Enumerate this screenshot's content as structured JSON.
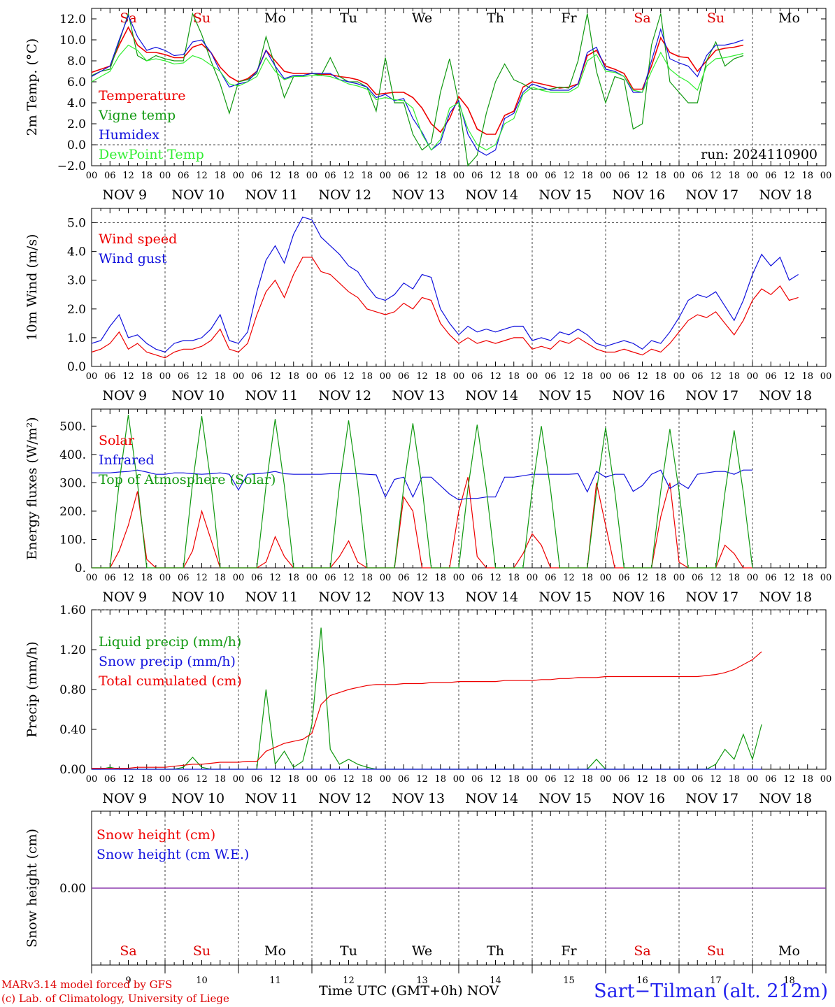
{
  "days": {
    "weekday_labels": [
      "Sa",
      "Su",
      "Mo",
      "Tu",
      "We",
      "Th",
      "Fr",
      "Sa",
      "Su",
      "Mo"
    ],
    "weekday_colors": [
      "#dd0000",
      "#dd0000",
      "#000000",
      "#000000",
      "#000000",
      "#000000",
      "#000000",
      "#dd0000",
      "#dd0000",
      "#000000"
    ],
    "date_labels": [
      "NOV  9",
      "NOV 10",
      "NOV 11",
      "NOV 12",
      "NOV 13",
      "NOV 14",
      "NOV 15",
      "NOV 16",
      "NOV 17",
      "NOV 18"
    ],
    "day_numbers": [
      "9",
      "10",
      "11",
      "12",
      "13",
      "14",
      "15",
      "16",
      "17",
      "18"
    ],
    "hour_ticks": [
      "00",
      "06",
      "12",
      "18"
    ],
    "final_hour": "00"
  },
  "footer": {
    "model_line1": "MARv3.14 model forced by GFS",
    "model_line2": "(c) Lab. of Climatology, University of Liege",
    "time_axis": "Time UTC (GMT+0h)",
    "month": "NOV",
    "station": "Sart−Tilman (alt. 212m)"
  },
  "colors": {
    "red": "#ee0000",
    "green": "#119911",
    "blue": "#1111dd",
    "lightgreen": "#33ee33",
    "purple": "#8833aa"
  },
  "chart_data": [
    {
      "type": "line",
      "ylabel": "2m Temp. (°C)",
      "ylim": [
        -2,
        13
      ],
      "yticks": [
        "12.0",
        "10.0",
        "8.0",
        "6.0",
        "4.0",
        "2.0",
        "0.0",
        "−2.0"
      ],
      "yticks_values": [
        12,
        10,
        8,
        6,
        4,
        2,
        0,
        -2
      ],
      "annotation": "run: 2024110900",
      "x_hours_step": 3,
      "series": [
        {
          "name": "Temperature",
          "color": "#ee0000",
          "values": [
            6.9,
            7.2,
            7.5,
            9.5,
            11.2,
            9.5,
            8.8,
            8.8,
            8.6,
            8.3,
            8.3,
            9.3,
            9.6,
            8.8,
            7.4,
            6.5,
            6.0,
            6.3,
            7.0,
            9.0,
            8.0,
            7.0,
            6.8,
            6.8,
            6.8,
            6.7,
            6.7,
            6.5,
            6.4,
            6.2,
            5.8,
            4.8,
            4.9,
            5.0,
            5.0,
            4.5,
            3.5,
            2.0,
            1.2,
            2.5,
            4.6,
            3.5,
            1.5,
            1.0,
            1.0,
            2.8,
            3.2,
            5.5,
            6.0,
            5.8,
            5.6,
            5.4,
            5.5,
            5.8,
            8.5,
            9.0,
            7.5,
            7.2,
            6.8,
            5.3,
            5.3,
            7.5,
            10.2,
            8.8,
            8.4,
            8.3,
            7.0,
            8.0,
            9.0,
            9.2,
            9.3,
            9.5
          ]
        },
        {
          "name": "Vigne temp",
          "color": "#119911",
          "values": [
            6.6,
            7.0,
            7.2,
            9.8,
            12.5,
            8.5,
            8.0,
            8.5,
            8.2,
            8.0,
            8.0,
            12.5,
            10.5,
            8.0,
            5.8,
            3.0,
            6.0,
            6.2,
            6.8,
            10.3,
            7.5,
            4.5,
            6.5,
            6.6,
            6.8,
            6.6,
            8.3,
            6.5,
            6.0,
            6.0,
            5.5,
            3.2,
            8.3,
            4.0,
            4.0,
            1.0,
            -0.5,
            0.2,
            5.0,
            8.2,
            4.0,
            -2.0,
            -1.0,
            3.0,
            6.0,
            7.7,
            6.2,
            5.8,
            5.3,
            5.3,
            5.3,
            5.5,
            5.4,
            8.0,
            12.5,
            7.0,
            4.0,
            6.5,
            6.2,
            1.5,
            2.0,
            9.5,
            12.5,
            6.0,
            5.0,
            4.0,
            4.0,
            8.0,
            9.8,
            7.5,
            8.2,
            8.5
          ]
        },
        {
          "name": "Humidex",
          "color": "#1111dd",
          "values": [
            6.5,
            7.0,
            7.5,
            10.0,
            12.3,
            10.3,
            9.0,
            9.3,
            9.0,
            8.5,
            8.6,
            9.8,
            10.0,
            8.8,
            7.0,
            5.5,
            5.8,
            6.0,
            7.0,
            9.0,
            7.5,
            6.3,
            6.6,
            6.6,
            6.8,
            6.8,
            6.8,
            6.2,
            6.0,
            5.8,
            5.5,
            4.5,
            4.8,
            4.2,
            4.4,
            2.5,
            1.2,
            -0.5,
            0.2,
            3.0,
            4.2,
            1.0,
            -0.5,
            -1.0,
            -0.5,
            2.5,
            3.0,
            5.0,
            5.8,
            5.5,
            5.2,
            5.2,
            5.2,
            5.8,
            8.8,
            9.3,
            7.2,
            7.0,
            6.5,
            5.0,
            5.0,
            8.0,
            11.0,
            8.2,
            7.8,
            7.5,
            6.5,
            8.5,
            9.5,
            9.5,
            9.7,
            10.0
          ]
        },
        {
          "name": "DewPoint Temp",
          "color": "#33ee33",
          "values": [
            6.0,
            6.5,
            7.0,
            8.5,
            9.5,
            9.0,
            8.0,
            8.2,
            8.0,
            7.7,
            7.8,
            8.5,
            8.2,
            7.6,
            7.0,
            5.8,
            5.6,
            6.0,
            6.5,
            8.3,
            7.0,
            6.2,
            6.5,
            6.5,
            6.6,
            6.6,
            6.5,
            6.2,
            5.8,
            5.6,
            5.3,
            4.3,
            4.5,
            4.3,
            4.2,
            3.5,
            1.0,
            -0.5,
            0.5,
            3.5,
            4.0,
            1.5,
            0.0,
            -0.5,
            0.0,
            2.0,
            2.5,
            4.8,
            5.5,
            5.2,
            5.0,
            5.0,
            5.0,
            5.5,
            8.0,
            8.6,
            7.0,
            6.9,
            6.5,
            5.2,
            5.0,
            7.0,
            8.8,
            7.2,
            6.5,
            6.0,
            5.2,
            7.5,
            8.2,
            8.3,
            8.5,
            8.7
          ]
        }
      ]
    },
    {
      "type": "line",
      "ylabel": "10m Wind (m/s)",
      "ylim": [
        0,
        5.5
      ],
      "yticks": [
        "5.0",
        "4.0",
        "3.0",
        "2.0",
        "1.0",
        "0.0"
      ],
      "yticks_values": [
        5,
        4,
        3,
        2,
        1,
        0
      ],
      "x_hours_step": 3,
      "series": [
        {
          "name": "Wind speed",
          "color": "#ee0000",
          "values": [
            0.5,
            0.6,
            0.8,
            1.2,
            0.6,
            0.8,
            0.5,
            0.4,
            0.3,
            0.5,
            0.6,
            0.6,
            0.7,
            0.9,
            1.3,
            0.6,
            0.5,
            0.8,
            1.8,
            2.6,
            3.0,
            2.4,
            3.2,
            3.8,
            3.8,
            3.3,
            3.2,
            2.9,
            2.6,
            2.4,
            2.0,
            1.9,
            1.8,
            1.9,
            2.2,
            2.0,
            2.4,
            2.3,
            1.5,
            1.1,
            0.8,
            1.0,
            0.8,
            0.9,
            0.8,
            0.9,
            1.0,
            1.0,
            0.6,
            0.7,
            0.6,
            0.9,
            0.8,
            1.0,
            0.8,
            0.6,
            0.5,
            0.5,
            0.6,
            0.5,
            0.4,
            0.6,
            0.5,
            0.8,
            1.2,
            1.6,
            1.8,
            1.7,
            1.9,
            1.5,
            1.1,
            1.6,
            2.3,
            2.7,
            2.5,
            2.8,
            2.3,
            2.4
          ]
        },
        {
          "name": "Wind gust",
          "color": "#1111dd",
          "values": [
            0.8,
            0.9,
            1.4,
            1.8,
            1.0,
            1.1,
            0.8,
            0.6,
            0.5,
            0.8,
            0.9,
            0.9,
            1.0,
            1.3,
            1.8,
            0.9,
            0.8,
            1.2,
            2.6,
            3.7,
            4.2,
            3.6,
            4.6,
            5.2,
            5.1,
            4.5,
            4.2,
            3.9,
            3.5,
            3.3,
            2.8,
            2.4,
            2.3,
            2.5,
            2.9,
            2.7,
            3.2,
            3.1,
            2.0,
            1.5,
            1.1,
            1.4,
            1.2,
            1.3,
            1.2,
            1.3,
            1.4,
            1.4,
            0.9,
            1.0,
            0.9,
            1.2,
            1.1,
            1.3,
            1.1,
            0.8,
            0.7,
            0.8,
            0.9,
            0.8,
            0.6,
            0.9,
            0.8,
            1.2,
            1.7,
            2.3,
            2.5,
            2.4,
            2.6,
            2.1,
            1.6,
            2.3,
            3.2,
            3.9,
            3.5,
            3.8,
            3.0,
            3.2
          ]
        }
      ]
    },
    {
      "type": "line",
      "ylabel": "Energy fluxes (W/m²)",
      "ylim": [
        0,
        560
      ],
      "yticks": [
        "500.",
        "400.",
        "300.",
        "200.",
        "100.",
        "0."
      ],
      "yticks_values": [
        500,
        400,
        300,
        200,
        100,
        0
      ],
      "x_hours_step": 3,
      "series": [
        {
          "name": "Solar",
          "color": "#ee0000",
          "values": [
            0,
            0,
            0,
            60,
            150,
            270,
            30,
            0,
            0,
            0,
            0,
            60,
            200,
            100,
            0,
            0,
            0,
            0,
            0,
            20,
            110,
            40,
            0,
            0,
            0,
            0,
            0,
            40,
            95,
            20,
            0,
            0,
            0,
            0,
            250,
            200,
            0,
            0,
            0,
            0,
            200,
            320,
            40,
            0,
            0,
            0,
            0,
            50,
            120,
            80,
            0,
            0,
            0,
            0,
            0,
            300,
            150,
            0,
            0,
            0,
            0,
            0,
            180,
            300,
            20,
            0,
            0,
            0,
            0,
            80,
            50,
            0,
            0
          ]
        },
        {
          "name": "Infrared",
          "color": "#1111dd",
          "values": [
            335,
            335,
            335,
            338,
            340,
            345,
            338,
            330,
            330,
            335,
            335,
            332,
            330,
            332,
            335,
            330,
            275,
            330,
            332,
            335,
            340,
            332,
            330,
            330,
            330,
            330,
            332,
            332,
            332,
            332,
            330,
            328,
            250,
            312,
            320,
            250,
            320,
            320,
            290,
            260,
            240,
            245,
            245,
            250,
            250,
            320,
            320,
            325,
            330,
            330,
            330,
            330,
            330,
            332,
            268,
            340,
            320,
            330,
            330,
            270,
            290,
            330,
            345,
            280,
            300,
            280,
            330,
            335,
            340,
            340,
            330,
            345,
            345
          ]
        },
        {
          "name": "Top of Atmosphere (Solar)",
          "color": "#119911",
          "values": [
            0,
            0,
            0,
            300,
            540,
            300,
            0,
            0,
            0,
            0,
            0,
            300,
            535,
            300,
            0,
            0,
            0,
            0,
            0,
            290,
            525,
            290,
            0,
            0,
            0,
            0,
            0,
            290,
            520,
            290,
            0,
            0,
            0,
            0,
            285,
            510,
            285,
            0,
            0,
            0,
            0,
            280,
            505,
            280,
            0,
            0,
            0,
            0,
            275,
            500,
            275,
            0,
            0,
            0,
            0,
            270,
            495,
            270,
            0,
            0,
            0,
            0,
            270,
            490,
            270,
            0,
            0,
            0,
            0,
            265,
            485,
            265,
            0
          ]
        }
      ]
    },
    {
      "type": "line",
      "ylabel": "Precip (mm/h)",
      "ylim": [
        0,
        1.6
      ],
      "yticks": [
        "1.60",
        "1.20",
        "0.80",
        "0.40",
        "0.00"
      ],
      "yticks_values": [
        1.6,
        1.2,
        0.8,
        0.4,
        0
      ],
      "x_hours_step": 3,
      "series": [
        {
          "name": "Liquid precip (mm/h)",
          "color": "#119911",
          "values": [
            0,
            0,
            0.02,
            0,
            0,
            0,
            0,
            0,
            0,
            0,
            0.02,
            0.12,
            0.02,
            0,
            0,
            0,
            0,
            0,
            0,
            0.8,
            0.05,
            0.18,
            0.02,
            0.08,
            0.45,
            1.42,
            0.2,
            0.05,
            0.1,
            0.05,
            0.02,
            0,
            0,
            0,
            0,
            0,
            0,
            0,
            0,
            0,
            0,
            0,
            0,
            0,
            0,
            0,
            0,
            0,
            0,
            0,
            0,
            0,
            0,
            0,
            0,
            0.1,
            0,
            0,
            0,
            0,
            0,
            0,
            0,
            0,
            0,
            0,
            0,
            0,
            0.05,
            0.2,
            0.1,
            0.35,
            0.1,
            0.45
          ]
        },
        {
          "name": "Snow precip (mm/h)",
          "color": "#1111dd",
          "values": [
            0,
            0,
            0,
            0,
            0,
            0,
            0,
            0,
            0,
            0,
            0,
            0,
            0,
            0,
            0,
            0,
            0,
            0,
            0,
            0,
            0,
            0,
            0,
            0,
            0,
            0,
            0,
            0,
            0,
            0,
            0,
            0,
            0,
            0,
            0,
            0,
            0,
            0,
            0,
            0,
            0,
            0,
            0,
            0,
            0,
            0,
            0,
            0,
            0,
            0,
            0,
            0,
            0,
            0,
            0,
            0,
            0,
            0,
            0,
            0,
            0,
            0,
            0,
            0,
            0,
            0,
            0,
            0,
            0,
            0,
            0,
            0,
            0,
            0
          ]
        },
        {
          "name": "Total cumulated (cm)",
          "color": "#ee0000",
          "values": [
            0.01,
            0.01,
            0.01,
            0.01,
            0.01,
            0.02,
            0.02,
            0.02,
            0.02,
            0.03,
            0.04,
            0.05,
            0.05,
            0.06,
            0.07,
            0.07,
            0.07,
            0.08,
            0.08,
            0.18,
            0.22,
            0.26,
            0.28,
            0.3,
            0.36,
            0.65,
            0.74,
            0.77,
            0.8,
            0.82,
            0.84,
            0.85,
            0.85,
            0.85,
            0.86,
            0.86,
            0.86,
            0.87,
            0.87,
            0.87,
            0.88,
            0.88,
            0.88,
            0.88,
            0.88,
            0.89,
            0.89,
            0.89,
            0.89,
            0.9,
            0.9,
            0.91,
            0.91,
            0.92,
            0.92,
            0.92,
            0.93,
            0.93,
            0.93,
            0.93,
            0.93,
            0.93,
            0.93,
            0.93,
            0.93,
            0.93,
            0.93,
            0.94,
            0.95,
            0.97,
            1.0,
            1.05,
            1.1,
            1.18
          ]
        }
      ]
    },
    {
      "type": "line",
      "ylabel": "Snow height (cm)",
      "ylim": [
        -1,
        1
      ],
      "yticks": [
        "0.00"
      ],
      "yticks_values": [
        0
      ],
      "x_hours_step": 3,
      "series": [
        {
          "name": "Snow height (cm)",
          "color": "#ee0000",
          "values": [
            0,
            0
          ]
        },
        {
          "name": "Snow height (cm W.E.)",
          "color": "#1111dd",
          "values": [
            0,
            0
          ]
        }
      ]
    }
  ]
}
